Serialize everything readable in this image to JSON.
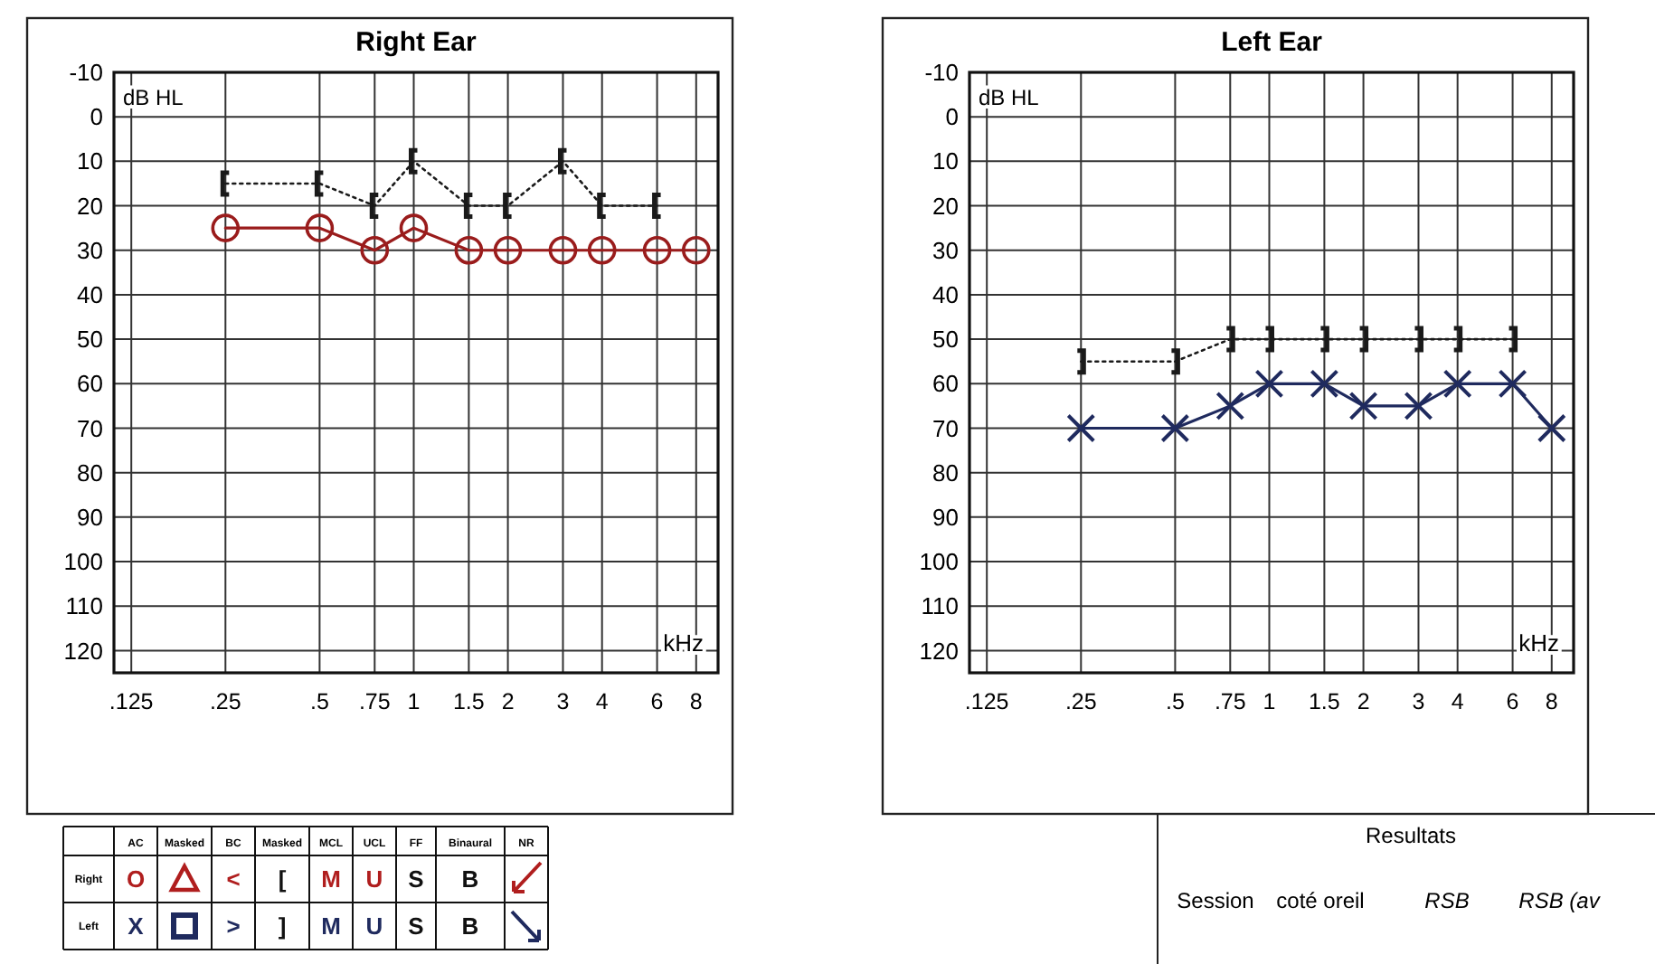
{
  "chart_data": [
    {
      "type": "line",
      "title": "Right Ear",
      "xlabel": "kHz",
      "ylabel": "dB HL",
      "log": "x",
      "grid": true,
      "xlim": [
        0.11,
        9.4
      ],
      "ylim": [
        125,
        -10
      ],
      "xticks": [
        {
          "value": 0.125,
          "label": ".125"
        },
        {
          "value": 0.25,
          "label": ".25"
        },
        {
          "value": 0.5,
          "label": ".5"
        },
        {
          "value": 0.75,
          "label": ".75"
        },
        1,
        1.5,
        2,
        3,
        4,
        6,
        8
      ],
      "yticks": [
        -10,
        0,
        10,
        20,
        30,
        40,
        50,
        60,
        70,
        80,
        90,
        100,
        110,
        120
      ],
      "series": [
        {
          "color": "#9a1c1c",
          "marker": "circle",
          "line_style": "solid",
          "x": [
            0.25,
            0.5,
            0.75,
            1,
            1.5,
            2,
            3,
            4,
            6,
            8
          ],
          "values": [
            25,
            25,
            30,
            25,
            30,
            30,
            30,
            30,
            30,
            30
          ]
        },
        {
          "color": "#1a1a1a",
          "line_style": "dotted",
          "x": [
            0.25,
            0.5,
            0.75,
            1,
            1.5,
            2,
            3,
            4,
            6
          ],
          "values": [
            15,
            15,
            20,
            10,
            20,
            20,
            10,
            20,
            20
          ]
        }
      ]
    },
    {
      "type": "line",
      "title": "Left Ear",
      "xlabel": "kHz",
      "ylabel": "dB HL",
      "log": "x",
      "grid": true,
      "xlim": [
        0.11,
        9.4
      ],
      "ylim": [
        125,
        -10
      ],
      "xticks": [
        {
          "value": 0.125,
          "label": ".125"
        },
        {
          "value": 0.25,
          "label": ".25"
        },
        {
          "value": 0.5,
          "label": ".5"
        },
        {
          "value": 0.75,
          "label": ".75"
        },
        1,
        1.5,
        2,
        3,
        4,
        6,
        8
      ],
      "yticks": [
        -10,
        0,
        10,
        20,
        30,
        40,
        50,
        60,
        70,
        80,
        90,
        100,
        110,
        120
      ],
      "series": [
        {
          "color": "#1f2a5e",
          "marker": "cross",
          "line_style": "solid",
          "x": [
            0.25,
            0.5,
            0.75,
            1,
            1.5,
            2,
            3,
            4,
            6,
            8
          ],
          "values": [
            70,
            70,
            65,
            60,
            60,
            65,
            65,
            60,
            60,
            70
          ]
        },
        {
          "color": "#1a1a1a",
          "line_style": "dotted",
          "x": [
            0.25,
            0.5,
            0.75,
            1,
            1.5,
            2,
            3,
            4,
            6
          ],
          "values": [
            55,
            55,
            50,
            50,
            50,
            50,
            50,
            50,
            50
          ]
        }
      ]
    },
    {
      "type": "other",
      "annotations": [
        "AC",
        "Masked",
        "BC",
        "Masked",
        "MCL",
        "UCL",
        "FF",
        "Binaural",
        "NR",
        "Right",
        "O",
        "<",
        "[",
        "M",
        "U",
        "S",
        "B",
        "Left",
        "X",
        ">",
        "]",
        "M",
        "U",
        "S",
        "B"
      ]
    },
    {
      "type": "other",
      "annotations": [
        "Resultats",
        "Session",
        "coté oreil",
        "RSB",
        "RSB (av"
      ]
    }
  ]
}
